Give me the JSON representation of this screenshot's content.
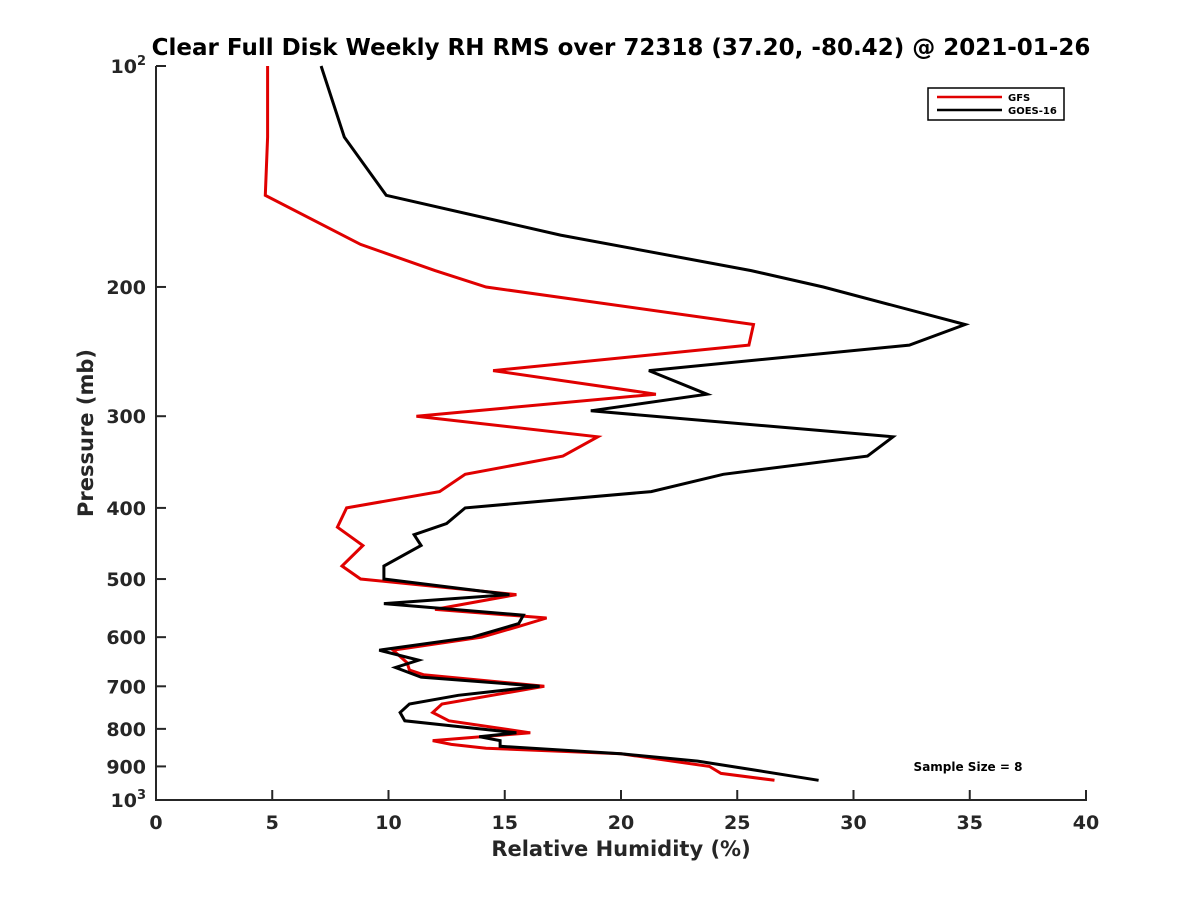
{
  "chart_data": {
    "type": "line",
    "title": "Clear Full Disk Weekly RH RMS over 72318 (37.20, -80.42) @ 2021-01-26",
    "xlabel": "Relative Humidity (%)",
    "ylabel": "Pressure (mb)",
    "xlim": [
      0,
      40
    ],
    "ylim": [
      100,
      1000
    ],
    "y_scale": "log",
    "y_reversed": true,
    "x_ticks": [
      0,
      5,
      10,
      15,
      20,
      25,
      30,
      35,
      40
    ],
    "x_tick_labels": [
      "0",
      "5",
      "10",
      "15",
      "20",
      "25",
      "30",
      "35",
      "40"
    ],
    "y_ticks": [
      {
        "value": 100,
        "label": "10",
        "sup": "2"
      },
      {
        "value": 200,
        "label": "200"
      },
      {
        "value": 300,
        "label": "300"
      },
      {
        "value": 400,
        "label": "400"
      },
      {
        "value": 500,
        "label": "500"
      },
      {
        "value": 600,
        "label": "600"
      },
      {
        "value": 700,
        "label": "700"
      },
      {
        "value": 800,
        "label": "800"
      },
      {
        "value": 900,
        "label": "900"
      },
      {
        "value": 1000,
        "label": "10",
        "sup": "3"
      }
    ],
    "grid": false,
    "legend_position": "top-right",
    "annotation": "Sample Size = 8",
    "series": [
      {
        "name": "GFS",
        "color": "#e00000",
        "points": [
          [
            4.8,
            100
          ],
          [
            4.8,
            125
          ],
          [
            4.7,
            150
          ],
          [
            8.8,
            175
          ],
          [
            12.0,
            190
          ],
          [
            14.2,
            200
          ],
          [
            25.7,
            225
          ],
          [
            25.5,
            240
          ],
          [
            14.5,
            260
          ],
          [
            21.5,
            280
          ],
          [
            11.2,
            300
          ],
          [
            19.0,
            320
          ],
          [
            17.5,
            340
          ],
          [
            13.3,
            360
          ],
          [
            12.2,
            380
          ],
          [
            8.2,
            400
          ],
          [
            7.8,
            425
          ],
          [
            8.9,
            450
          ],
          [
            8.0,
            480
          ],
          [
            8.8,
            500
          ],
          [
            15.5,
            525
          ],
          [
            12.0,
            550
          ],
          [
            16.8,
            565
          ],
          [
            15.6,
            580
          ],
          [
            14.0,
            600
          ],
          [
            10.2,
            625
          ],
          [
            10.8,
            650
          ],
          [
            10.9,
            665
          ],
          [
            11.5,
            675
          ],
          [
            16.7,
            700
          ],
          [
            12.3,
            740
          ],
          [
            11.9,
            760
          ],
          [
            12.6,
            780
          ],
          [
            16.1,
            810
          ],
          [
            11.9,
            830
          ],
          [
            12.7,
            840
          ],
          [
            14.2,
            850
          ],
          [
            20.0,
            865
          ],
          [
            23.8,
            900
          ],
          [
            24.3,
            920
          ],
          [
            26.6,
            940
          ]
        ]
      },
      {
        "name": "GOES-16",
        "color": "#000000",
        "points": [
          [
            7.1,
            100
          ],
          [
            8.1,
            125
          ],
          [
            9.9,
            150
          ],
          [
            17.4,
            170
          ],
          [
            25.6,
            190
          ],
          [
            28.7,
            200
          ],
          [
            34.8,
            225
          ],
          [
            32.4,
            240
          ],
          [
            21.2,
            260
          ],
          [
            23.7,
            280
          ],
          [
            18.7,
            295
          ],
          [
            31.7,
            320
          ],
          [
            30.6,
            340
          ],
          [
            24.4,
            360
          ],
          [
            21.3,
            380
          ],
          [
            13.3,
            400
          ],
          [
            12.5,
            420
          ],
          [
            11.1,
            435
          ],
          [
            11.4,
            450
          ],
          [
            9.8,
            480
          ],
          [
            9.8,
            500
          ],
          [
            15.2,
            525
          ],
          [
            9.8,
            540
          ],
          [
            15.8,
            560
          ],
          [
            15.6,
            575
          ],
          [
            13.6,
            600
          ],
          [
            9.6,
            625
          ],
          [
            11.3,
            645
          ],
          [
            10.3,
            660
          ],
          [
            11.4,
            680
          ],
          [
            16.5,
            700
          ],
          [
            13.0,
            720
          ],
          [
            10.9,
            740
          ],
          [
            10.5,
            760
          ],
          [
            10.7,
            780
          ],
          [
            15.5,
            810
          ],
          [
            13.9,
            820
          ],
          [
            14.8,
            830
          ],
          [
            14.8,
            845
          ],
          [
            20.0,
            865
          ],
          [
            23.3,
            885
          ],
          [
            25.7,
            910
          ],
          [
            28.5,
            940
          ]
        ]
      }
    ]
  }
}
